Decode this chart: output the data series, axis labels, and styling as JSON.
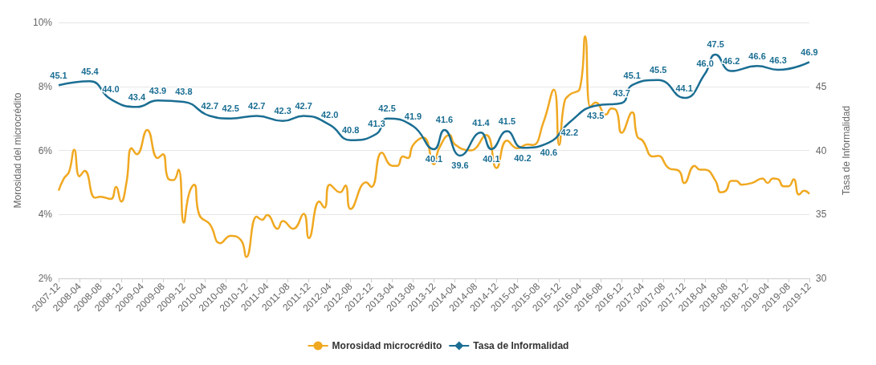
{
  "chart_data": {
    "type": "line",
    "ylabel": "Morosidad del microcrédito",
    "y2label": "Tasa de Informalidad",
    "xlim": [
      "2007-12",
      "2019-12"
    ],
    "xticks": [
      "2007-12",
      "2008-04",
      "2008-08",
      "2008-12",
      "2009-04",
      "2009-08",
      "2009-12",
      "2010-04",
      "2010-08",
      "2010-12",
      "2011-04",
      "2011-08",
      "2011-12",
      "2012-04",
      "2012-08",
      "2012-12",
      "2013-04",
      "2013-08",
      "2013-12",
      "2014-04",
      "2014-08",
      "2014-12",
      "2015-04",
      "2015-08",
      "2015-12",
      "2016-04",
      "2016-08",
      "2016-12",
      "2017-04",
      "2017-08",
      "2017-12",
      "2018-04",
      "2018-08",
      "2018-12",
      "2019-04",
      "2019-08",
      "2019-12"
    ],
    "ylim": [
      2,
      10
    ],
    "yticks": [
      {
        "value": 2,
        "label": "2%"
      },
      {
        "value": 4,
        "label": "4%"
      },
      {
        "value": 6,
        "label": "6%"
      },
      {
        "value": 8,
        "label": "8%"
      },
      {
        "value": 10,
        "label": "10%"
      }
    ],
    "y2lim": [
      30,
      50
    ],
    "y2ticks": [
      30,
      35,
      40,
      45
    ],
    "grid": "y",
    "legend": "bottom",
    "series": [
      {
        "name": "Morosidad microcrédito",
        "color": "#f0a820",
        "x": [
          "2007-12",
          "2008-01",
          "2008-02",
          "2008-03",
          "2008-04",
          "2008-05",
          "2008-07",
          "2008-08",
          "2008-10",
          "2008-11",
          "2008-12",
          "2009-01",
          "2009-02",
          "2009-03",
          "2009-05",
          "2009-07",
          "2009-08",
          "2009-09",
          "2009-10",
          "2009-11",
          "2009-12",
          "2010-01",
          "2010-02",
          "2010-03",
          "2010-05",
          "2010-07",
          "2010-09",
          "2010-11",
          "2010-12",
          "2011-02",
          "2011-03",
          "2011-04",
          "2011-06",
          "2011-07",
          "2011-09",
          "2011-11",
          "2011-12",
          "2012-02",
          "2012-03",
          "2012-04",
          "2012-06",
          "2012-07",
          "2012-08",
          "2012-11",
          "2012-12",
          "2013-02",
          "2013-04",
          "2013-05",
          "2013-06",
          "2013-07",
          "2013-08",
          "2013-10",
          "2013-12",
          "2014-01",
          "2014-03",
          "2014-04",
          "2014-07",
          "2014-10",
          "2014-12",
          "2015-02",
          "2015-04",
          "2015-06",
          "2015-07",
          "2015-09",
          "2015-11",
          "2015-12",
          "2016-01",
          "2016-02",
          "2016-04",
          "2016-05",
          "2016-06",
          "2016-07",
          "2016-09",
          "2016-10",
          "2016-11",
          "2016-12",
          "2017-02",
          "2017-03",
          "2017-04",
          "2017-06",
          "2017-07",
          "2017-09",
          "2017-11",
          "2017-12",
          "2018-02",
          "2018-03",
          "2018-04",
          "2018-06",
          "2018-07",
          "2018-08",
          "2018-09",
          "2018-10",
          "2018-11",
          "2019-01",
          "2019-03",
          "2019-04",
          "2019-05",
          "2019-06",
          "2019-07",
          "2019-08",
          "2019-09",
          "2019-10",
          "2019-11",
          "2019-12"
        ],
        "values": [
          4.74,
          5.12,
          5.33,
          6.02,
          5.19,
          5.36,
          4.52,
          4.55,
          4.48,
          4.86,
          4.4,
          4.98,
          6.07,
          5.88,
          6.64,
          5.76,
          5.88,
          5.12,
          5.07,
          5.4,
          3.74,
          4.64,
          4.93,
          3.98,
          3.69,
          3.1,
          3.33,
          3.19,
          2.67,
          3.93,
          3.83,
          3.98,
          3.55,
          3.79,
          3.55,
          4.02,
          3.26,
          4.4,
          4.21,
          4.93,
          4.69,
          4.9,
          4.17,
          5.0,
          4.86,
          5.93,
          5.52,
          5.52,
          5.81,
          5.76,
          6.17,
          6.4,
          5.57,
          6.07,
          6.48,
          6.19,
          6.0,
          6.48,
          5.45,
          6.31,
          6.07,
          6.19,
          6.17,
          6.88,
          7.9,
          6.17,
          7.5,
          7.74,
          7.95,
          9.57,
          7.36,
          7.5,
          7.12,
          7.31,
          7.24,
          6.55,
          7.19,
          6.43,
          6.31,
          5.81,
          5.83,
          5.45,
          5.36,
          4.98,
          5.52,
          5.4,
          5.4,
          5.05,
          4.69,
          4.74,
          5.05,
          5.05,
          4.93,
          4.98,
          5.12,
          4.98,
          5.12,
          5.1,
          4.88,
          4.88,
          5.1,
          4.62,
          4.74,
          4.64
        ]
      },
      {
        "name": "Tasa de Informalidad",
        "color": "#1b6e93",
        "axis": "y2",
        "x": [
          "2007-12",
          "2008-06",
          "2008-10",
          "2009-03",
          "2009-07",
          "2009-12",
          "2010-05",
          "2010-09",
          "2011-02",
          "2011-07",
          "2011-11",
          "2012-04",
          "2012-08",
          "2013-01",
          "2013-03",
          "2013-08",
          "2013-12",
          "2014-02",
          "2014-05",
          "2014-09",
          "2014-11",
          "2015-02",
          "2015-05",
          "2015-10",
          "2016-02",
          "2016-07",
          "2016-12",
          "2017-02",
          "2017-07",
          "2017-12",
          "2018-04",
          "2018-06",
          "2018-09",
          "2019-02",
          "2019-06",
          "2019-12"
        ],
        "values": [
          45.1,
          45.4,
          44.0,
          43.4,
          43.9,
          43.8,
          42.7,
          42.5,
          42.7,
          42.3,
          42.7,
          42.0,
          40.8,
          41.3,
          42.5,
          41.9,
          40.1,
          41.6,
          39.6,
          41.4,
          40.1,
          41.5,
          40.2,
          40.6,
          42.2,
          43.5,
          43.7,
          45.1,
          45.5,
          44.1,
          46.0,
          47.5,
          46.2,
          46.6,
          46.3,
          46.9
        ],
        "value_labels": [
          "45.1",
          "45.4",
          "44.0",
          "43.4",
          "43.9",
          "43.8",
          "42.7",
          "42.5",
          "42.7",
          "42.3",
          "42.7",
          "42.0",
          "40.8",
          "41.3",
          "42.5",
          "41.9",
          "40.1",
          "41.6",
          "39.6",
          "41.4",
          "40.1",
          "41.5",
          "40.2",
          "40.6",
          "42.2",
          "43.5",
          "43.7",
          "45.1",
          "45.5",
          "44.1",
          "46.0",
          "47.5",
          "46.2",
          "46.6",
          "46.3",
          "46.9"
        ]
      }
    ]
  }
}
